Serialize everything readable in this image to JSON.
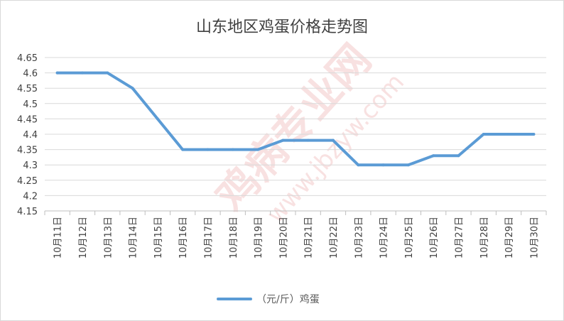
{
  "chart_data": {
    "type": "line",
    "title": "山东地区鸡蛋价格走势图",
    "categories": [
      "10月11日",
      "10月12日",
      "10月13日",
      "10月14日",
      "10月15日",
      "10月16日",
      "10月17日",
      "10月18日",
      "10月19日",
      "10月20日",
      "10月21日",
      "10月22日",
      "10月23日",
      "10月24日",
      "10月25日",
      "10月26日",
      "10月27日",
      "10月28日",
      "10月29日",
      "10月30日"
    ],
    "series": [
      {
        "name": "（元/斤）鸡蛋",
        "color": "#5b9bd5",
        "values": [
          4.6,
          4.6,
          4.6,
          4.55,
          4.45,
          4.35,
          4.35,
          4.35,
          4.35,
          4.38,
          4.38,
          4.38,
          4.3,
          4.3,
          4.3,
          4.33,
          4.33,
          4.4,
          4.4,
          4.4
        ]
      }
    ],
    "yticks": [
      "4.15",
      "4.2",
      "4.25",
      "4.3",
      "4.35",
      "4.4",
      "4.45",
      "4.5",
      "4.55",
      "4.6",
      "4.65"
    ],
    "ylim": [
      4.15,
      4.65
    ],
    "grid": true,
    "legend_position": "bottom"
  },
  "watermark": {
    "main": "鸡病专业网",
    "url": "www.jbzyw.com"
  }
}
